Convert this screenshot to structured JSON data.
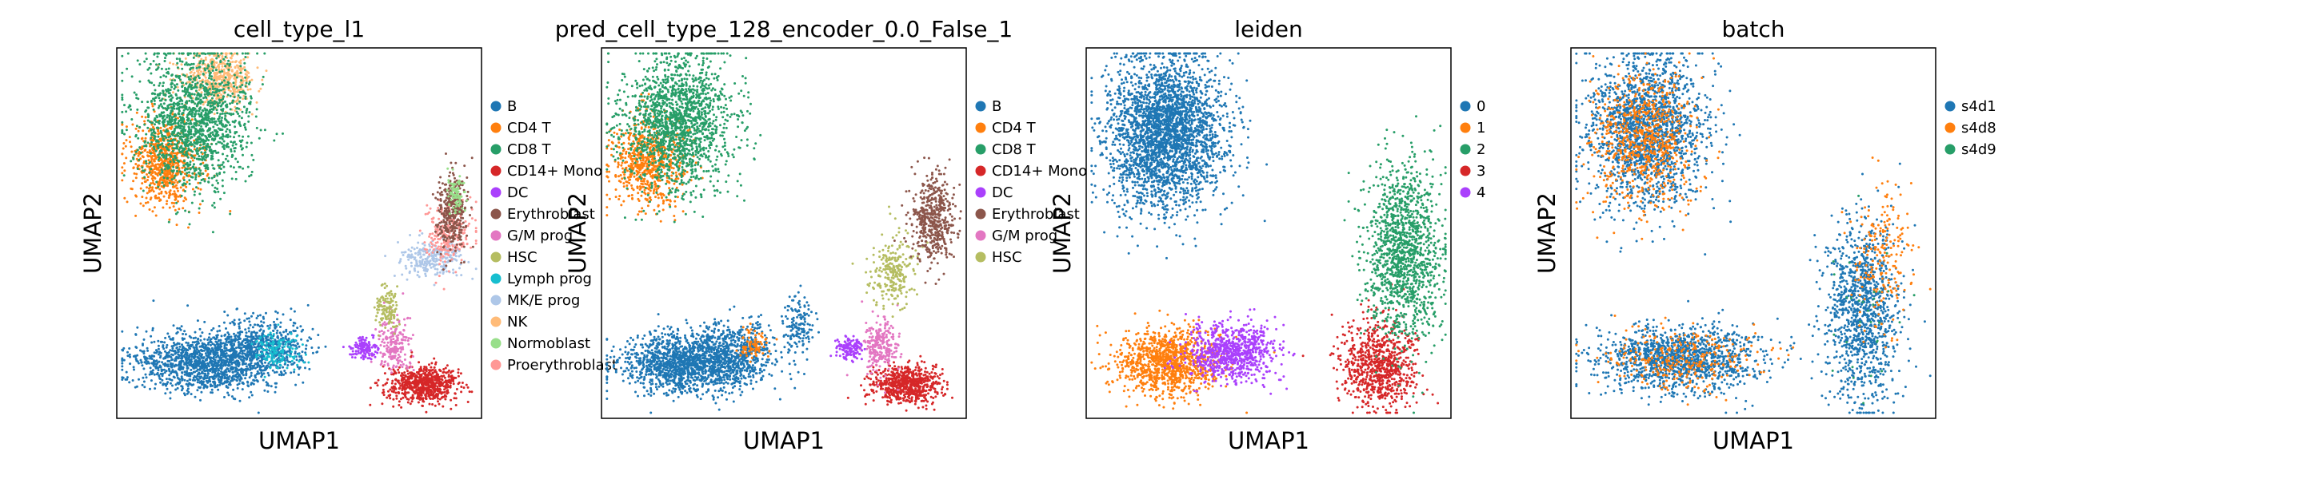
{
  "chart_data": [
    {
      "type": "scatter",
      "title": "cell_type_l1",
      "xlabel": "UMAP1",
      "ylabel": "UMAP2",
      "legend_position": "right",
      "legend": [
        {
          "label": "B",
          "color": "#1f77b4"
        },
        {
          "label": "CD4 T",
          "color": "#ff7f0e"
        },
        {
          "label": "CD8 T",
          "color": "#279e68"
        },
        {
          "label": "CD14+ Mono",
          "color": "#d62728"
        },
        {
          "label": "DC",
          "color": "#aa40fc"
        },
        {
          "label": "Erythroblast",
          "color": "#8c564b"
        },
        {
          "label": "G/M prog",
          "color": "#e377c2"
        },
        {
          "label": "HSC",
          "color": "#b5bd61"
        },
        {
          "label": "Lymph prog",
          "color": "#17becf"
        },
        {
          "label": "MK/E prog",
          "color": "#aec7e8"
        },
        {
          "label": "NK",
          "color": "#ffbb78"
        },
        {
          "label": "Normoblast",
          "color": "#98df8a"
        },
        {
          "label": "Proerythroblast",
          "color": "#ff9896"
        }
      ],
      "clusters": [
        {
          "name": "B",
          "color": "#1f77b4",
          "points": 1300,
          "cx": 0.24,
          "cy": 0.85,
          "sx": 0.09,
          "sy": 0.04
        },
        {
          "name": "B",
          "color": "#1f77b4",
          "points": 600,
          "cx": 0.4,
          "cy": 0.81,
          "sx": 0.06,
          "sy": 0.04
        },
        {
          "name": "Lymph prog",
          "color": "#17becf",
          "points": 140,
          "cx": 0.44,
          "cy": 0.82,
          "sx": 0.03,
          "sy": 0.025
        },
        {
          "name": "CD4 T",
          "color": "#ff7f0e",
          "points": 700,
          "cx": 0.13,
          "cy": 0.31,
          "sx": 0.05,
          "sy": 0.06
        },
        {
          "name": "NK",
          "color": "#ffbb78",
          "points": 500,
          "cx": 0.28,
          "cy": 0.08,
          "sx": 0.05,
          "sy": 0.035
        },
        {
          "name": "CD8 T",
          "color": "#279e68",
          "points": 1500,
          "cx": 0.21,
          "cy": 0.2,
          "sx": 0.075,
          "sy": 0.09
        },
        {
          "name": "CD14+ Mono",
          "color": "#d62728",
          "points": 700,
          "cx": 0.84,
          "cy": 0.91,
          "sx": 0.045,
          "sy": 0.025
        },
        {
          "name": "G/M prog",
          "color": "#e377c2",
          "points": 200,
          "cx": 0.76,
          "cy": 0.8,
          "sx": 0.025,
          "sy": 0.04
        },
        {
          "name": "DC",
          "color": "#aa40fc",
          "points": 130,
          "cx": 0.68,
          "cy": 0.81,
          "sx": 0.02,
          "sy": 0.015
        },
        {
          "name": "HSC",
          "color": "#b5bd61",
          "points": 130,
          "cx": 0.74,
          "cy": 0.7,
          "sx": 0.015,
          "sy": 0.03
        },
        {
          "name": "MK/E prog",
          "color": "#aec7e8",
          "points": 250,
          "cx": 0.87,
          "cy": 0.57,
          "sx": 0.045,
          "sy": 0.025
        },
        {
          "name": "Proerythroblast",
          "color": "#ff9896",
          "points": 250,
          "cx": 0.91,
          "cy": 0.5,
          "sx": 0.03,
          "sy": 0.04
        },
        {
          "name": "Erythroblast",
          "color": "#8c564b",
          "points": 350,
          "cx": 0.92,
          "cy": 0.44,
          "sx": 0.02,
          "sy": 0.05
        },
        {
          "name": "Normoblast",
          "color": "#98df8a",
          "points": 80,
          "cx": 0.93,
          "cy": 0.39,
          "sx": 0.012,
          "sy": 0.025
        }
      ]
    },
    {
      "type": "scatter",
      "title": "pred_cell_type_128_encoder_0.0_False_1",
      "xlabel": "UMAP1",
      "ylabel": "UMAP2",
      "legend_position": "right",
      "legend": [
        {
          "label": "B",
          "color": "#1f77b4"
        },
        {
          "label": "CD4 T",
          "color": "#ff7f0e"
        },
        {
          "label": "CD8 T",
          "color": "#279e68"
        },
        {
          "label": "CD14+ Mono",
          "color": "#d62728"
        },
        {
          "label": "DC",
          "color": "#aa40fc"
        },
        {
          "label": "Erythroblast",
          "color": "#8c564b"
        },
        {
          "label": "G/M prog",
          "color": "#e377c2"
        },
        {
          "label": "HSC",
          "color": "#b5bd61"
        }
      ],
      "clusters": [
        {
          "name": "B",
          "color": "#1f77b4",
          "points": 1500,
          "cx": 0.24,
          "cy": 0.85,
          "sx": 0.09,
          "sy": 0.04
        },
        {
          "name": "B",
          "color": "#1f77b4",
          "points": 400,
          "cx": 0.38,
          "cy": 0.82,
          "sx": 0.05,
          "sy": 0.04
        },
        {
          "name": "B",
          "color": "#1f77b4",
          "points": 150,
          "cx": 0.54,
          "cy": 0.75,
          "sx": 0.02,
          "sy": 0.04
        },
        {
          "name": "CD4 T",
          "color": "#ff7f0e",
          "points": 700,
          "cx": 0.13,
          "cy": 0.31,
          "sx": 0.05,
          "sy": 0.06
        },
        {
          "name": "CD4 T",
          "color": "#ff7f0e",
          "points": 80,
          "cx": 0.42,
          "cy": 0.8,
          "sx": 0.02,
          "sy": 0.02
        },
        {
          "name": "CD8 T",
          "color": "#279e68",
          "points": 1600,
          "cx": 0.21,
          "cy": 0.2,
          "sx": 0.075,
          "sy": 0.09
        },
        {
          "name": "CD14+ Mono",
          "color": "#d62728",
          "points": 700,
          "cx": 0.84,
          "cy": 0.91,
          "sx": 0.045,
          "sy": 0.025
        },
        {
          "name": "G/M prog",
          "color": "#e377c2",
          "points": 250,
          "cx": 0.76,
          "cy": 0.8,
          "sx": 0.025,
          "sy": 0.04
        },
        {
          "name": "DC",
          "color": "#aa40fc",
          "points": 130,
          "cx": 0.68,
          "cy": 0.81,
          "sx": 0.02,
          "sy": 0.015
        },
        {
          "name": "HSC",
          "color": "#b5bd61",
          "points": 250,
          "cx": 0.8,
          "cy": 0.6,
          "sx": 0.03,
          "sy": 0.05
        },
        {
          "name": "Erythroblast",
          "color": "#8c564b",
          "points": 500,
          "cx": 0.91,
          "cy": 0.46,
          "sx": 0.03,
          "sy": 0.06
        }
      ]
    },
    {
      "type": "scatter",
      "title": "leiden",
      "xlabel": "UMAP1",
      "ylabel": "UMAP2",
      "legend_position": "right",
      "legend": [
        {
          "label": "0",
          "color": "#1f77b4"
        },
        {
          "label": "1",
          "color": "#ff7f0e"
        },
        {
          "label": "2",
          "color": "#279e68"
        },
        {
          "label": "3",
          "color": "#d62728"
        },
        {
          "label": "4",
          "color": "#aa40fc"
        }
      ],
      "clusters": [
        {
          "name": "0",
          "color": "#1f77b4",
          "points": 2800,
          "cx": 0.22,
          "cy": 0.23,
          "sx": 0.08,
          "sy": 0.1
        },
        {
          "name": "1",
          "color": "#ff7f0e",
          "points": 1100,
          "cx": 0.22,
          "cy": 0.85,
          "sx": 0.07,
          "sy": 0.045
        },
        {
          "name": "4",
          "color": "#aa40fc",
          "points": 800,
          "cx": 0.4,
          "cy": 0.82,
          "sx": 0.06,
          "sy": 0.04
        },
        {
          "name": "3",
          "color": "#d62728",
          "points": 800,
          "cx": 0.8,
          "cy": 0.85,
          "sx": 0.05,
          "sy": 0.06
        },
        {
          "name": "2",
          "color": "#279e68",
          "points": 1300,
          "cx": 0.87,
          "cy": 0.55,
          "sx": 0.05,
          "sy": 0.12
        }
      ]
    },
    {
      "type": "scatter",
      "title": "batch",
      "xlabel": "UMAP1",
      "ylabel": "UMAP2",
      "legend_position": "right",
      "legend": [
        {
          "label": "s4d1",
          "color": "#1f77b4"
        },
        {
          "label": "s4d8",
          "color": "#ff7f0e"
        },
        {
          "label": "s4d9",
          "color": "#279e68"
        }
      ],
      "clusters": [
        {
          "name": "s4d1",
          "color": "#1f77b4",
          "points": 1800,
          "cx": 0.21,
          "cy": 0.22,
          "sx": 0.08,
          "sy": 0.1
        },
        {
          "name": "s4d8",
          "color": "#ff7f0e",
          "points": 700,
          "cx": 0.2,
          "cy": 0.25,
          "sx": 0.07,
          "sy": 0.09
        },
        {
          "name": "s4d1",
          "color": "#1f77b4",
          "points": 1300,
          "cx": 0.3,
          "cy": 0.84,
          "sx": 0.11,
          "sy": 0.045
        },
        {
          "name": "s4d8",
          "color": "#ff7f0e",
          "points": 300,
          "cx": 0.3,
          "cy": 0.84,
          "sx": 0.1,
          "sy": 0.04
        },
        {
          "name": "s4d1",
          "color": "#1f77b4",
          "points": 1100,
          "cx": 0.8,
          "cy": 0.7,
          "sx": 0.05,
          "sy": 0.12
        },
        {
          "name": "s4d8",
          "color": "#ff7f0e",
          "points": 200,
          "cx": 0.86,
          "cy": 0.55,
          "sx": 0.04,
          "sy": 0.1
        },
        {
          "name": "s4d9",
          "color": "#279e68",
          "points": 30,
          "cx": 0.8,
          "cy": 0.7,
          "sx": 0.05,
          "sy": 0.12
        }
      ]
    }
  ]
}
